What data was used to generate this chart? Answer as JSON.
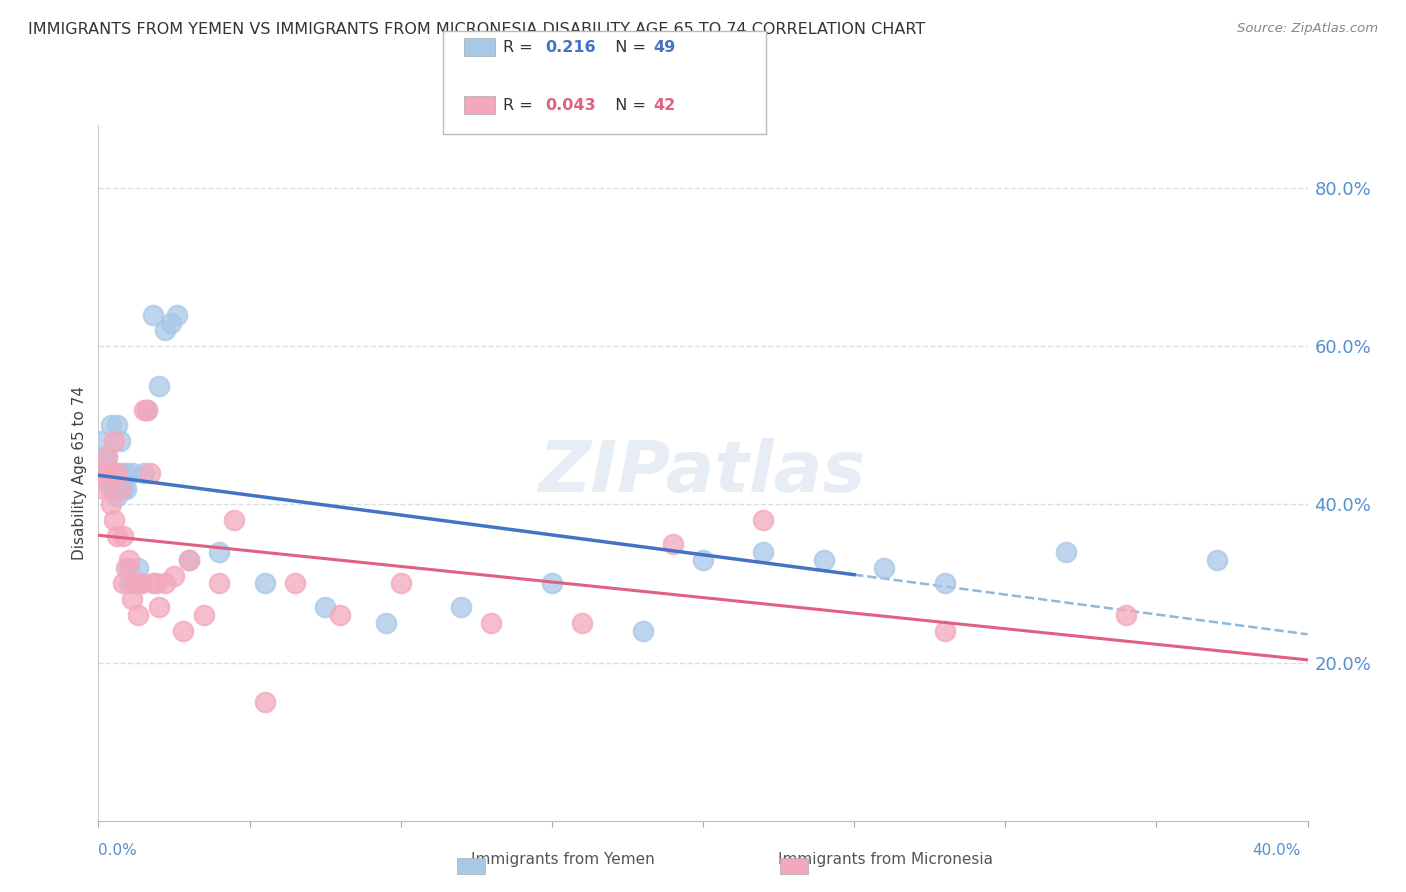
{
  "title": "IMMIGRANTS FROM YEMEN VS IMMIGRANTS FROM MICRONESIA DISABILITY AGE 65 TO 74 CORRELATION CHART",
  "source": "Source: ZipAtlas.com",
  "ylabel": "Disability Age 65 to 74",
  "right_yticks": [
    "80.0%",
    "60.0%",
    "40.0%",
    "20.0%"
  ],
  "right_ytick_vals": [
    0.8,
    0.6,
    0.4,
    0.2
  ],
  "xlim": [
    0.0,
    0.4
  ],
  "ylim": [
    0.0,
    0.88
  ],
  "watermark": "ZIPatlas",
  "blue_color": "#a8c8e8",
  "pink_color": "#f4a8bc",
  "blue_line_color": "#4472c4",
  "pink_line_color": "#e06080",
  "dashed_line_color": "#90b8d8",
  "grid_color": "#d8dfe8",
  "yemen_scatter_x": [
    0.001,
    0.002,
    0.002,
    0.003,
    0.003,
    0.003,
    0.004,
    0.004,
    0.004,
    0.005,
    0.005,
    0.006,
    0.006,
    0.006,
    0.007,
    0.007,
    0.007,
    0.008,
    0.008,
    0.009,
    0.009,
    0.01,
    0.01,
    0.011,
    0.012,
    0.013,
    0.014,
    0.015,
    0.016,
    0.018,
    0.02,
    0.022,
    0.024,
    0.026,
    0.03,
    0.04,
    0.055,
    0.075,
    0.095,
    0.12,
    0.15,
    0.18,
    0.2,
    0.22,
    0.24,
    0.26,
    0.28,
    0.32,
    0.37
  ],
  "yemen_scatter_y": [
    0.48,
    0.44,
    0.46,
    0.43,
    0.44,
    0.46,
    0.42,
    0.43,
    0.5,
    0.42,
    0.44,
    0.41,
    0.43,
    0.5,
    0.42,
    0.44,
    0.48,
    0.42,
    0.43,
    0.42,
    0.44,
    0.32,
    0.3,
    0.44,
    0.3,
    0.32,
    0.3,
    0.44,
    0.52,
    0.64,
    0.55,
    0.62,
    0.63,
    0.64,
    0.33,
    0.34,
    0.3,
    0.27,
    0.25,
    0.27,
    0.3,
    0.24,
    0.33,
    0.34,
    0.33,
    0.32,
    0.3,
    0.34,
    0.33
  ],
  "micronesia_scatter_x": [
    0.001,
    0.002,
    0.003,
    0.003,
    0.004,
    0.004,
    0.005,
    0.005,
    0.006,
    0.006,
    0.007,
    0.008,
    0.008,
    0.009,
    0.01,
    0.011,
    0.012,
    0.013,
    0.014,
    0.015,
    0.016,
    0.017,
    0.018,
    0.019,
    0.02,
    0.022,
    0.025,
    0.028,
    0.03,
    0.035,
    0.04,
    0.045,
    0.055,
    0.065,
    0.08,
    0.1,
    0.13,
    0.16,
    0.19,
    0.22,
    0.28,
    0.34
  ],
  "micronesia_scatter_y": [
    0.44,
    0.42,
    0.44,
    0.46,
    0.4,
    0.44,
    0.38,
    0.48,
    0.36,
    0.44,
    0.42,
    0.36,
    0.3,
    0.32,
    0.33,
    0.28,
    0.3,
    0.26,
    0.3,
    0.52,
    0.52,
    0.44,
    0.3,
    0.3,
    0.27,
    0.3,
    0.31,
    0.24,
    0.33,
    0.26,
    0.3,
    0.38,
    0.15,
    0.3,
    0.26,
    0.3,
    0.25,
    0.25,
    0.35,
    0.38,
    0.24,
    0.26
  ],
  "legend_R_blue": "0.216",
  "legend_N_blue": "49",
  "legend_R_pink": "0.043",
  "legend_N_pink": "42"
}
